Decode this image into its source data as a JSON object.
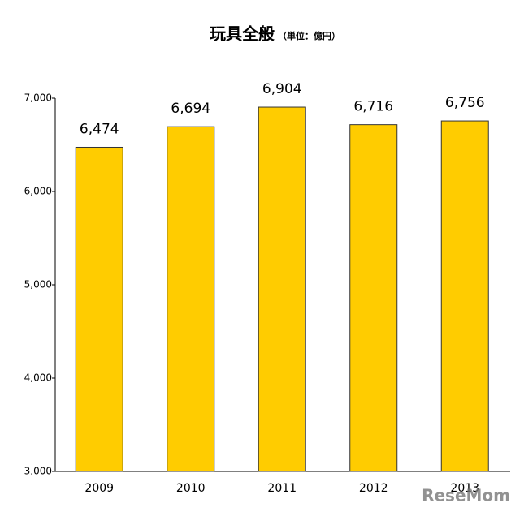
{
  "chart_data": {
    "type": "bar",
    "title": "玩具全般",
    "subtitle": "（単位：億円）",
    "categories": [
      "2009",
      "2010",
      "2011",
      "2012",
      "2013"
    ],
    "values": [
      6474,
      6694,
      6904,
      6716,
      6756
    ],
    "value_labels": [
      "6,474",
      "6,694",
      "6,904",
      "6,716",
      "6,756"
    ],
    "color": "#ffcc00",
    "ylim": [
      3000,
      7000
    ],
    "yticks": [
      {
        "value": 3000,
        "label": "3,000"
      },
      {
        "value": 4000,
        "label": "4,000"
      },
      {
        "value": 5000,
        "label": "5,000"
      },
      {
        "value": 6000,
        "label": "6,000"
      },
      {
        "value": 7000,
        "label": "7,000"
      }
    ],
    "grid": false,
    "watermark": "ReseMom"
  }
}
